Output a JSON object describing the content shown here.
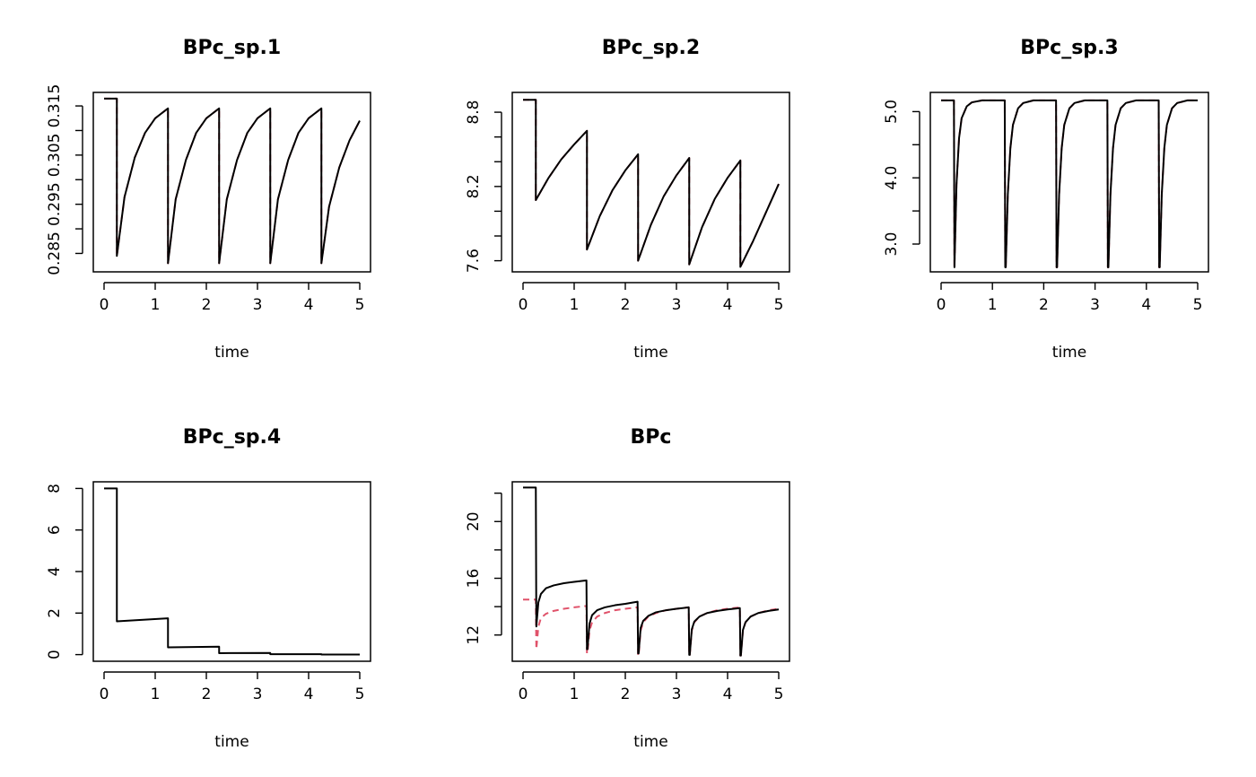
{
  "chart_data": [
    {
      "type": "line",
      "title": "BPc_sp.1",
      "xlabel": "time",
      "ylabel": "",
      "xlim": [
        0,
        5
      ],
      "ylim": [
        0.28125,
        0.31775
      ],
      "x_ticks": [
        0,
        1,
        2,
        3,
        4,
        5
      ],
      "y_ticks": [
        0.285,
        0.29,
        0.295,
        0.3,
        0.305,
        0.31,
        0.315
      ],
      "y_tick_labels": [
        "0.285",
        "",
        "0.295",
        "",
        "0.305",
        "",
        "0.315"
      ],
      "series": [
        {
          "color": "#e0526a",
          "dash": "dashed",
          "x": [
            0,
            0.25,
            0.25,
            0.4,
            0.6,
            0.8,
            1.0,
            1.25,
            1.25,
            1.4,
            1.6,
            1.8,
            2.0,
            2.25,
            2.25,
            2.4,
            2.6,
            2.8,
            3.0,
            3.25,
            3.25,
            3.4,
            3.6,
            3.8,
            4.0,
            4.25,
            4.25,
            4.4,
            4.6,
            4.8,
            5.0
          ],
          "y": [
            0.3165,
            0.3165,
            0.2845,
            0.2965,
            0.3045,
            0.3095,
            0.3125,
            0.3145,
            0.283,
            0.296,
            0.304,
            0.3095,
            0.3125,
            0.3145,
            0.283,
            0.296,
            0.304,
            0.3095,
            0.3125,
            0.3145,
            0.283,
            0.296,
            0.304,
            0.3095,
            0.3125,
            0.3145,
            0.283,
            0.2945,
            0.3025,
            0.308,
            0.312
          ]
        },
        {
          "color": "#000000",
          "dash": "solid",
          "x": [
            0,
            0.25,
            0.25,
            0.4,
            0.6,
            0.8,
            1.0,
            1.25,
            1.25,
            1.4,
            1.6,
            1.8,
            2.0,
            2.25,
            2.25,
            2.4,
            2.6,
            2.8,
            3.0,
            3.25,
            3.25,
            3.4,
            3.6,
            3.8,
            4.0,
            4.25,
            4.25,
            4.4,
            4.6,
            4.8,
            5.0
          ],
          "y": [
            0.3165,
            0.3165,
            0.2845,
            0.2965,
            0.3045,
            0.3095,
            0.3125,
            0.3145,
            0.283,
            0.296,
            0.304,
            0.3095,
            0.3125,
            0.3145,
            0.283,
            0.296,
            0.304,
            0.3095,
            0.3125,
            0.3145,
            0.283,
            0.296,
            0.304,
            0.3095,
            0.3125,
            0.3145,
            0.283,
            0.2945,
            0.3025,
            0.308,
            0.312
          ]
        }
      ]
    },
    {
      "type": "line",
      "title": "BPc_sp.2",
      "xlabel": "time",
      "ylabel": "",
      "xlim": [
        0,
        5
      ],
      "ylim": [
        7.51,
        8.96
      ],
      "x_ticks": [
        0,
        1,
        2,
        3,
        4,
        5
      ],
      "y_ticks": [
        7.6,
        7.8,
        8.0,
        8.2,
        8.4,
        8.6,
        8.8
      ],
      "y_tick_labels": [
        "7.6",
        "",
        "",
        "8.2",
        "",
        "",
        "8.8"
      ],
      "series": [
        {
          "color": "#e0526a",
          "dash": "dashed",
          "x": [
            0,
            0.25,
            0.25,
            0.5,
            0.75,
            1.0,
            1.25,
            1.25,
            1.5,
            1.75,
            2.0,
            2.25,
            2.25,
            2.5,
            2.75,
            3.0,
            3.25,
            3.25,
            3.5,
            3.75,
            4.0,
            4.25,
            4.25,
            4.5,
            4.75,
            5.0
          ],
          "y": [
            8.9,
            8.9,
            8.09,
            8.27,
            8.42,
            8.54,
            8.65,
            7.69,
            7.96,
            8.17,
            8.33,
            8.46,
            7.6,
            7.89,
            8.12,
            8.29,
            8.43,
            7.57,
            7.87,
            8.1,
            8.27,
            8.41,
            7.55,
            7.76,
            7.99,
            8.22
          ]
        },
        {
          "color": "#000000",
          "dash": "solid",
          "x": [
            0,
            0.25,
            0.25,
            0.5,
            0.75,
            1.0,
            1.25,
            1.25,
            1.5,
            1.75,
            2.0,
            2.25,
            2.25,
            2.5,
            2.75,
            3.0,
            3.25,
            3.25,
            3.5,
            3.75,
            4.0,
            4.25,
            4.25,
            4.5,
            4.75,
            5.0
          ],
          "y": [
            8.9,
            8.9,
            8.09,
            8.27,
            8.42,
            8.54,
            8.65,
            7.69,
            7.96,
            8.17,
            8.33,
            8.46,
            7.6,
            7.89,
            8.12,
            8.29,
            8.43,
            7.57,
            7.87,
            8.1,
            8.27,
            8.41,
            7.55,
            7.76,
            7.99,
            8.22
          ]
        }
      ]
    },
    {
      "type": "line",
      "title": "BPc_sp.3",
      "xlabel": "time",
      "ylabel": "",
      "xlim": [
        0,
        5
      ],
      "ylim": [
        2.58,
        5.29
      ],
      "x_ticks": [
        0,
        1,
        2,
        3,
        4,
        5
      ],
      "y_ticks": [
        3.0,
        3.5,
        4.0,
        4.5,
        5.0
      ],
      "y_tick_labels": [
        "3.0",
        "",
        "4.0",
        "",
        "5.0"
      ],
      "series": [
        {
          "color": "#e0526a",
          "dash": "dashed",
          "x": [
            0,
            0.25,
            0.26,
            0.3,
            0.35,
            0.4,
            0.5,
            0.6,
            0.8,
            1.24,
            1.25,
            1.26,
            1.3,
            1.35,
            1.4,
            1.5,
            1.6,
            1.8,
            2.24,
            2.25,
            2.26,
            2.3,
            2.35,
            2.4,
            2.5,
            2.6,
            2.8,
            3.24,
            3.25,
            3.26,
            3.3,
            3.35,
            3.4,
            3.5,
            3.6,
            3.8,
            4.24,
            4.25,
            4.26,
            4.3,
            4.35,
            4.4,
            4.5,
            4.6,
            4.8,
            5.0
          ],
          "y": [
            5.17,
            5.17,
            2.65,
            3.9,
            4.6,
            4.9,
            5.08,
            5.14,
            5.17,
            5.17,
            2.65,
            2.65,
            3.75,
            4.45,
            4.8,
            5.05,
            5.13,
            5.17,
            5.17,
            2.65,
            2.65,
            3.75,
            4.45,
            4.8,
            5.05,
            5.13,
            5.17,
            5.17,
            2.65,
            2.65,
            3.75,
            4.45,
            4.8,
            5.05,
            5.13,
            5.17,
            5.17,
            2.65,
            2.65,
            3.75,
            4.45,
            4.8,
            5.05,
            5.13,
            5.17,
            5.17
          ]
        },
        {
          "color": "#000000",
          "dash": "solid",
          "x": [
            0,
            0.25,
            0.26,
            0.3,
            0.35,
            0.4,
            0.5,
            0.6,
            0.8,
            1.24,
            1.25,
            1.26,
            1.3,
            1.35,
            1.4,
            1.5,
            1.6,
            1.8,
            2.24,
            2.25,
            2.26,
            2.3,
            2.35,
            2.4,
            2.5,
            2.6,
            2.8,
            3.24,
            3.25,
            3.26,
            3.3,
            3.35,
            3.4,
            3.5,
            3.6,
            3.8,
            4.24,
            4.25,
            4.26,
            4.3,
            4.35,
            4.4,
            4.5,
            4.6,
            4.8,
            5.0
          ],
          "y": [
            5.17,
            5.17,
            2.65,
            3.9,
            4.6,
            4.9,
            5.08,
            5.14,
            5.17,
            5.17,
            2.65,
            2.65,
            3.75,
            4.45,
            4.8,
            5.05,
            5.13,
            5.17,
            5.17,
            2.65,
            2.65,
            3.75,
            4.45,
            4.8,
            5.05,
            5.13,
            5.17,
            5.17,
            2.65,
            2.65,
            3.75,
            4.45,
            4.8,
            5.05,
            5.13,
            5.17,
            5.17,
            2.65,
            2.65,
            3.75,
            4.45,
            4.8,
            5.05,
            5.13,
            5.17,
            5.17
          ]
        }
      ]
    },
    {
      "type": "line",
      "title": "BPc_sp.4",
      "xlabel": "time",
      "ylabel": "",
      "xlim": [
        0,
        5
      ],
      "ylim": [
        -0.32,
        8.32
      ],
      "x_ticks": [
        0,
        1,
        2,
        3,
        4,
        5
      ],
      "y_ticks": [
        0,
        2,
        4,
        6,
        8
      ],
      "y_tick_labels": [
        "0",
        "2",
        "4",
        "6",
        "8"
      ],
      "series": [
        {
          "color": "#000000",
          "dash": "solid",
          "x": [
            0,
            0.25,
            0.25,
            1.25,
            1.25,
            2.25,
            2.25,
            3.25,
            3.25,
            4.25,
            4.25,
            5.0
          ],
          "y": [
            8.0,
            8.0,
            1.6,
            1.75,
            0.35,
            0.38,
            0.07,
            0.08,
            0.02,
            0.02,
            0.005,
            0.005
          ]
        }
      ]
    },
    {
      "type": "line",
      "title": "BPc",
      "xlabel": "time",
      "ylabel": "",
      "xlim": [
        0,
        5
      ],
      "ylim": [
        10.15,
        22.8
      ],
      "x_ticks": [
        0,
        1,
        2,
        3,
        4,
        5
      ],
      "y_ticks": [
        12,
        14,
        16,
        18,
        20,
        22
      ],
      "y_tick_labels": [
        "12",
        "",
        "16",
        "",
        "20",
        ""
      ],
      "series": [
        {
          "color": "#e0526a",
          "dash": "dashed",
          "x": [
            0,
            0.25,
            0.26,
            0.3,
            0.35,
            0.45,
            0.6,
            0.8,
            1.0,
            1.24,
            1.25,
            1.26,
            1.3,
            1.35,
            1.45,
            1.6,
            1.8,
            2.0,
            2.24,
            2.25,
            2.26,
            2.3,
            2.35,
            2.45,
            2.6,
            2.8,
            3.0,
            3.24,
            3.25,
            3.26,
            3.3,
            3.35,
            3.45,
            3.6,
            3.8,
            4.0,
            4.24,
            4.25,
            4.26,
            4.3,
            4.35,
            4.45,
            4.6,
            4.8,
            5.0
          ],
          "y": [
            14.5,
            14.5,
            11.0,
            12.6,
            13.2,
            13.5,
            13.7,
            13.85,
            13.95,
            14.05,
            10.7,
            10.7,
            12.3,
            12.9,
            13.3,
            13.55,
            13.75,
            13.85,
            13.95,
            10.55,
            10.55,
            12.3,
            12.9,
            13.3,
            13.55,
            13.75,
            13.85,
            13.95,
            10.55,
            10.55,
            12.3,
            12.9,
            13.3,
            13.55,
            13.75,
            13.85,
            13.95,
            10.55,
            10.55,
            12.3,
            12.9,
            13.3,
            13.55,
            13.75,
            13.85
          ]
        },
        {
          "color": "#000000",
          "dash": "solid",
          "x": [
            0,
            0.25,
            0.26,
            0.3,
            0.35,
            0.45,
            0.6,
            0.8,
            1.0,
            1.24,
            1.25,
            1.26,
            1.3,
            1.35,
            1.45,
            1.6,
            1.8,
            2.0,
            2.24,
            2.25,
            2.26,
            2.3,
            2.35,
            2.45,
            2.6,
            2.8,
            3.0,
            3.24,
            3.25,
            3.26,
            3.3,
            3.35,
            3.45,
            3.6,
            3.8,
            4.0,
            4.24,
            4.25,
            4.26,
            4.3,
            4.35,
            4.45,
            4.6,
            4.8,
            5.0
          ],
          "y": [
            22.4,
            22.4,
            12.6,
            14.3,
            14.9,
            15.3,
            15.5,
            15.65,
            15.75,
            15.85,
            11.0,
            11.0,
            12.8,
            13.4,
            13.75,
            13.95,
            14.1,
            14.2,
            14.35,
            10.7,
            10.7,
            12.5,
            13.0,
            13.35,
            13.6,
            13.75,
            13.85,
            13.95,
            10.6,
            10.6,
            12.4,
            12.95,
            13.3,
            13.55,
            13.7,
            13.8,
            13.9,
            10.55,
            10.55,
            12.35,
            12.9,
            13.3,
            13.55,
            13.7,
            13.8
          ]
        }
      ]
    }
  ]
}
